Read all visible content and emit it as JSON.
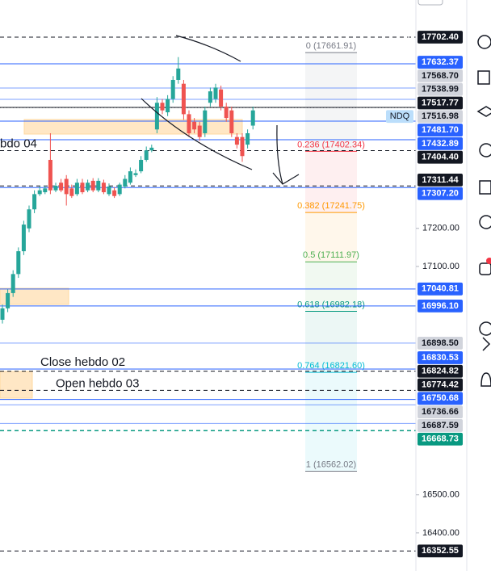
{
  "chart_data": {
    "type": "candlestick",
    "symbol": "NDQ",
    "ylim": [
      16300,
      17800
    ],
    "yticks": [
      {
        "value": 17200,
        "label": "17200.00"
      },
      {
        "value": 17100,
        "label": "17100.00"
      },
      {
        "value": 16500,
        "label": "16500.00"
      },
      {
        "value": 16400,
        "label": "16400.00"
      }
    ],
    "up_color": "#26a69a",
    "down_color": "#ef5350",
    "open": [
      16960,
      16990,
      17030,
      17080,
      17140,
      17200,
      17250,
      17290,
      17295,
      17380,
      17300,
      17320,
      17330,
      17305,
      17290,
      17320,
      17300,
      17325,
      17300,
      17320,
      17290,
      17300,
      17290,
      17310,
      17320,
      17340,
      17350,
      17380,
      17405,
      17460,
      17530,
      17505,
      17540,
      17590,
      17580,
      17500,
      17480,
      17470,
      17450,
      17530,
      17540,
      17565,
      17520,
      17510,
      17440,
      17440,
      17420,
      17470
    ],
    "high": [
      17000,
      17040,
      17090,
      17150,
      17220,
      17260,
      17300,
      17310,
      17312,
      17450,
      17320,
      17330,
      17340,
      17315,
      17330,
      17330,
      17328,
      17332,
      17332,
      17328,
      17318,
      17308,
      17320,
      17340,
      17360,
      17355,
      17390,
      17415,
      17420,
      17545,
      17540,
      17550,
      17600,
      17650,
      17590,
      17510,
      17490,
      17480,
      17520,
      17570,
      17580,
      17575,
      17530,
      17520,
      17450,
      17450,
      17460,
      17520
    ],
    "low": [
      16950,
      16980,
      17020,
      17070,
      17130,
      17190,
      17240,
      17285,
      17290,
      17290,
      17295,
      17295,
      17260,
      17280,
      17285,
      17290,
      17295,
      17295,
      17295,
      17290,
      17285,
      17280,
      17285,
      17305,
      17315,
      17335,
      17345,
      17375,
      17400,
      17450,
      17500,
      17495,
      17530,
      17580,
      17485,
      17440,
      17450,
      17430,
      17440,
      17520,
      17530,
      17510,
      17480,
      17440,
      17410,
      17375,
      17410,
      17460
    ],
    "close": [
      16990,
      17030,
      17080,
      17140,
      17210,
      17250,
      17290,
      17300,
      17305,
      17300,
      17312,
      17300,
      17290,
      17285,
      17320,
      17295,
      17320,
      17300,
      17325,
      17295,
      17310,
      17285,
      17315,
      17330,
      17350,
      17345,
      17380,
      17405,
      17412,
      17530,
      17510,
      17540,
      17590,
      17620,
      17500,
      17450,
      17460,
      17440,
      17510,
      17560,
      17570,
      17520,
      17490,
      17450,
      17420,
      17390,
      17450,
      17510
    ],
    "price_levels": [
      {
        "value": 17702.4,
        "label": "17702.40",
        "color": "#131722",
        "line": "dashed"
      },
      {
        "value": 17632.37,
        "label": "17632.37",
        "color": "#2962ff",
        "line": "solid"
      },
      {
        "value": 17568.7,
        "label": "17568.70",
        "color": "#d1d4dc",
        "line": "solid"
      },
      {
        "value": 17538.99,
        "label": "17538.99",
        "color": "#d1d4dc",
        "line": "solid"
      },
      {
        "value": 17517.77,
        "label": "17517.77",
        "color": "#131722",
        "line": "solid"
      },
      {
        "value": 17516.98,
        "label": "17516.98",
        "color": "#d1d4dc",
        "line": "dotted"
      },
      {
        "value": 17481.7,
        "label": "17481.70",
        "color": "#2962ff",
        "line": "solid"
      },
      {
        "value": 17432.89,
        "label": "17432.89",
        "color": "#2962ff",
        "line": "solid"
      },
      {
        "value": 17404.4,
        "label": "17404.40",
        "color": "#131722",
        "line": "dashed"
      },
      {
        "value": 17311.44,
        "label": "17311.44",
        "color": "#131722",
        "line": "dashed"
      },
      {
        "value": 17307.2,
        "label": "17307.20",
        "color": "#2962ff",
        "line": "solid"
      },
      {
        "value": 17040.81,
        "label": "17040.81",
        "color": "#2962ff",
        "line": "solid"
      },
      {
        "value": 16996.1,
        "label": "16996.10",
        "color": "#2962ff",
        "line": "solid"
      },
      {
        "value": 16898.5,
        "label": "16898.50",
        "color": "#d1d4dc",
        "line": "solid"
      },
      {
        "value": 16830.53,
        "label": "16830.53",
        "color": "#2962ff",
        "line": "solid"
      },
      {
        "value": 16824.82,
        "label": "16824.82",
        "color": "#131722",
        "line": "dashed"
      },
      {
        "value": 16774.42,
        "label": "16774.42",
        "color": "#131722",
        "line": "dashed"
      },
      {
        "value": 16750.68,
        "label": "16750.68",
        "color": "#2962ff",
        "line": "solid"
      },
      {
        "value": 16736.66,
        "label": "16736.66",
        "color": "#d1d4dc",
        "line": "solid"
      },
      {
        "value": 16687.59,
        "label": "16687.59",
        "color": "#d1d4dc",
        "line": "solid"
      },
      {
        "value": 16668.73,
        "label": "16668.73",
        "color": "#089981",
        "line": "dashed"
      },
      {
        "value": 16352.55,
        "label": "16352.55",
        "color": "#131722",
        "line": "dashed"
      }
    ],
    "fib_levels": [
      {
        "text": "0 (17661.91)",
        "price": 17661.91,
        "color": "#787b86"
      },
      {
        "text": "0.236 (17402.34)",
        "price": 17402.34,
        "color": "#f23645"
      },
      {
        "text": "0.382 (17241.75)",
        "price": 17241.75,
        "color": "#ff9800"
      },
      {
        "text": "0.5 (17111.97)",
        "price": 17111.97,
        "color": "#4caf50"
      },
      {
        "text": "0.618 (16982.18)",
        "price": 16982.18,
        "color": "#089981"
      },
      {
        "text": "0.764 (16821.60)",
        "price": 16821.6,
        "color": "#00bcd4"
      },
      {
        "text": "1 (16562.02)",
        "price": 16562.02,
        "color": "#787b86"
      }
    ],
    "annotations": [
      {
        "text": "bdo 04",
        "price": 17404.4
      },
      {
        "text": "Close hebdo 02",
        "price": 16830.53
      },
      {
        "text": "Open hebdo 03",
        "price": 16774.42
      }
    ]
  }
}
